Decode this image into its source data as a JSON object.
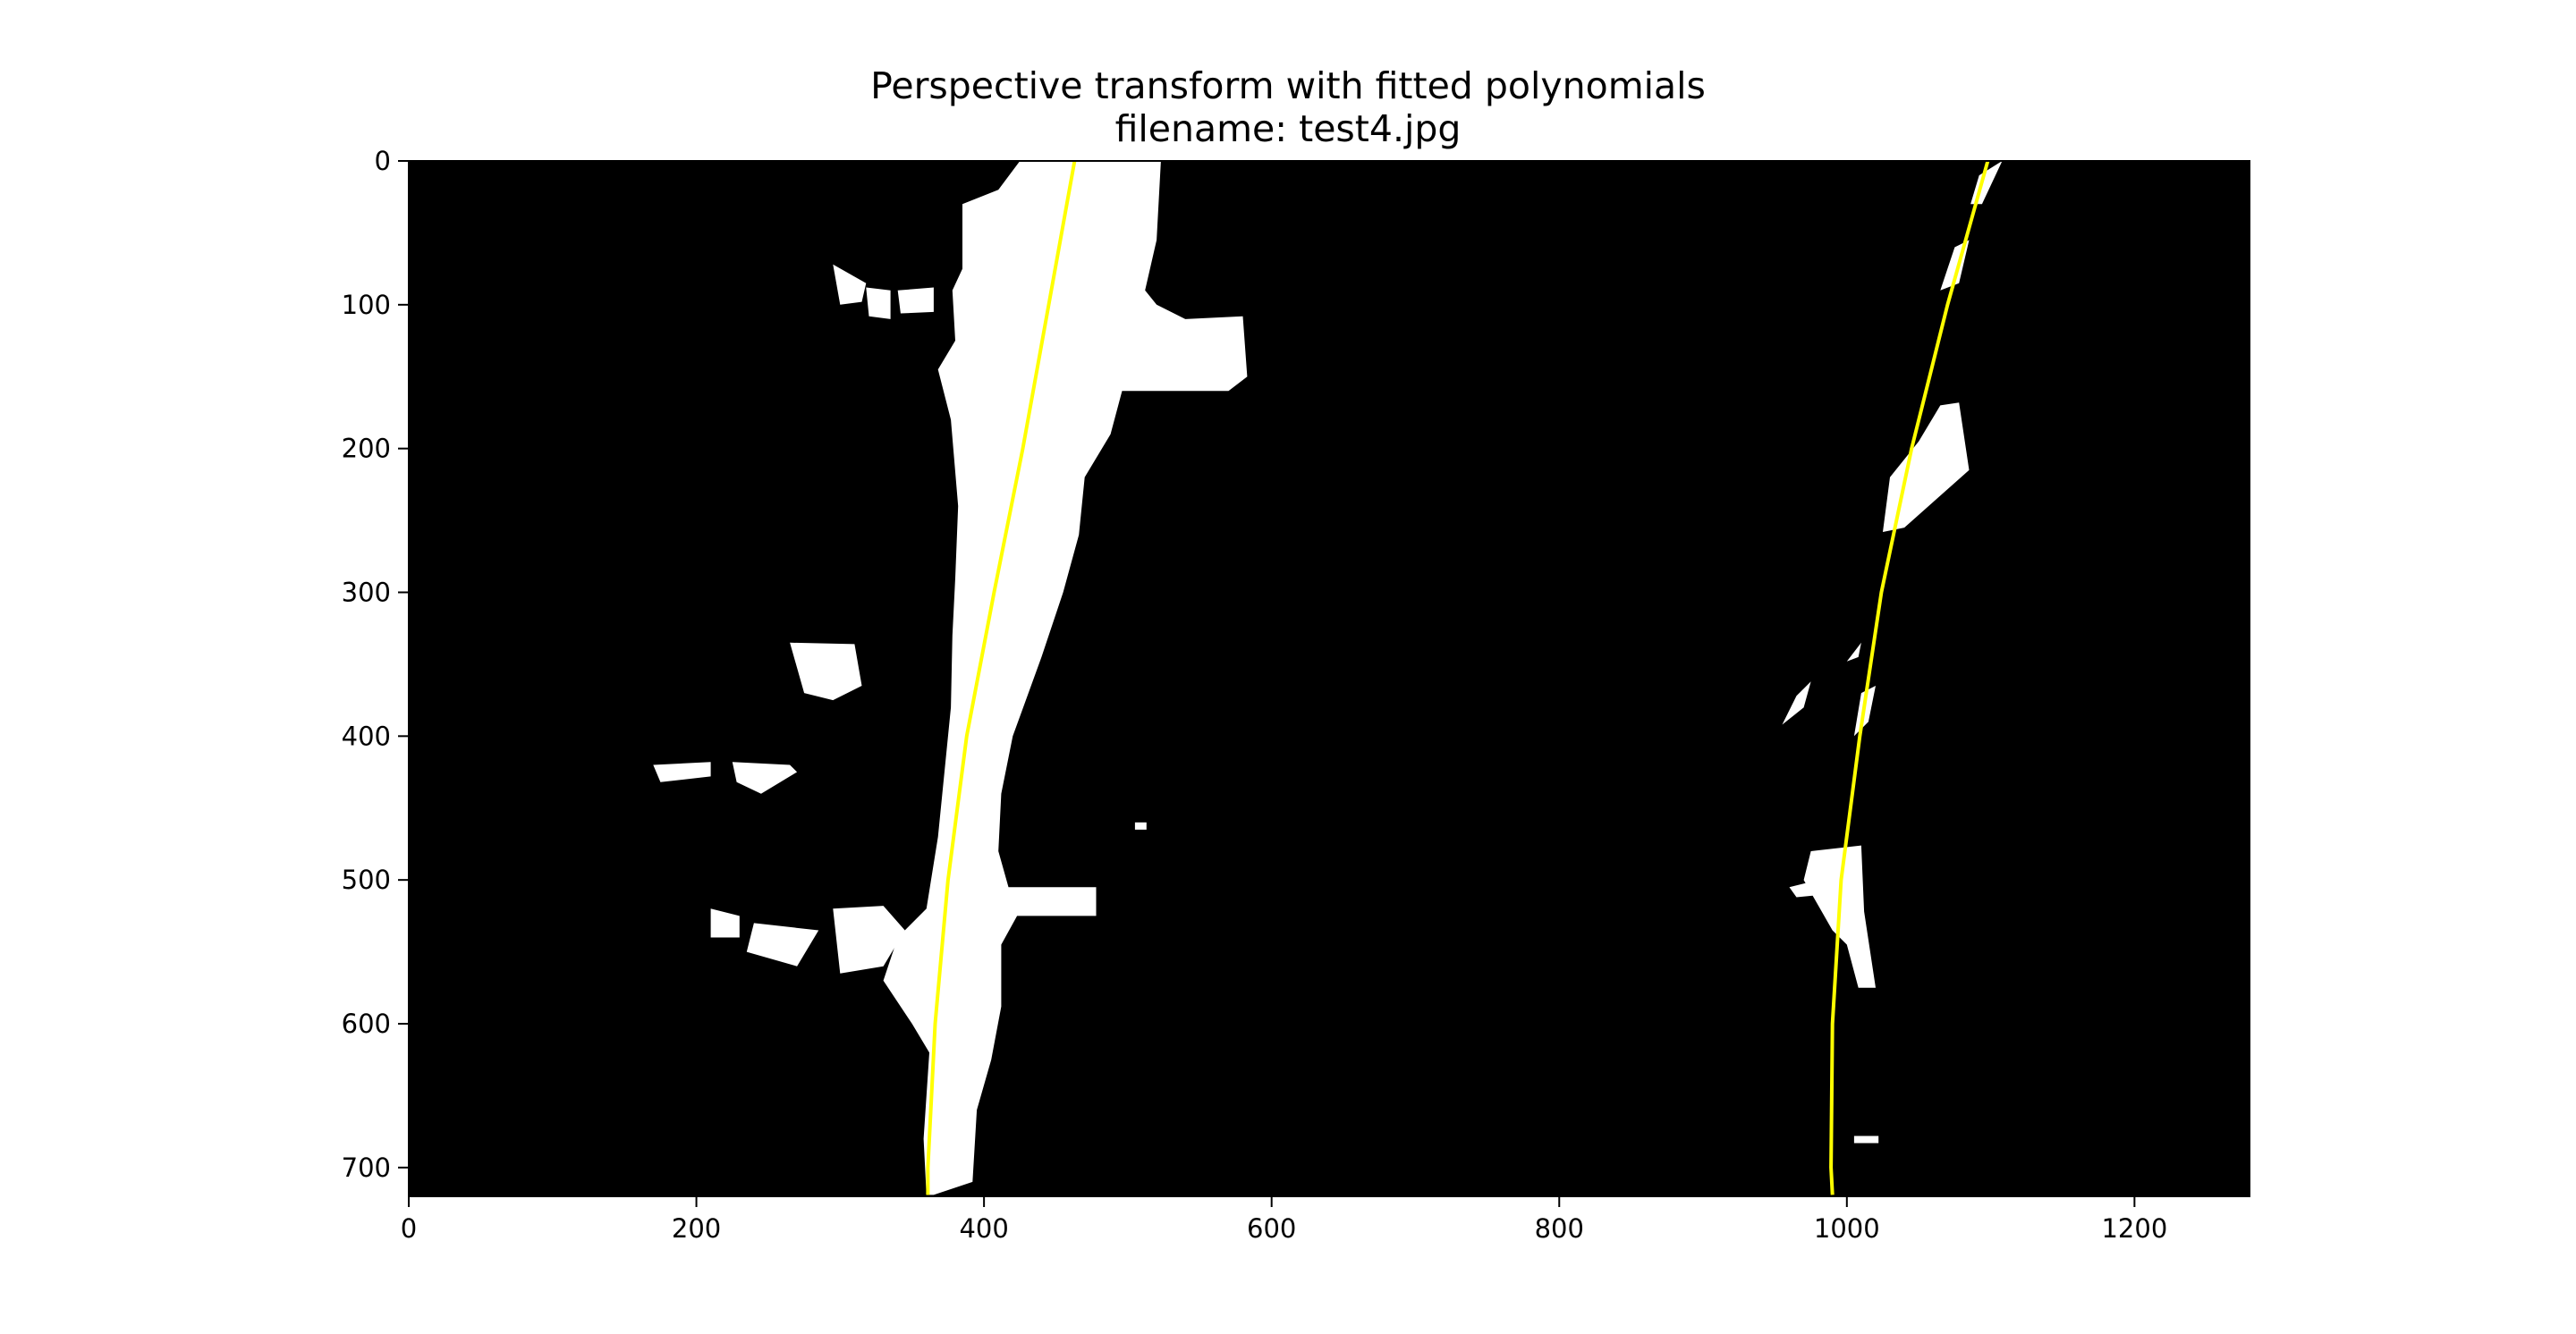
{
  "chart_data": {
    "type": "image",
    "title": "Perspective transform with fitted polynomials",
    "subtitle": "filename: test4.jpg",
    "xlabel": "",
    "ylabel": "",
    "xlim": [
      0,
      1280
    ],
    "ylim": [
      720,
      0
    ],
    "x_ticks": [
      0,
      200,
      400,
      600,
      800,
      1000,
      1200
    ],
    "y_ticks": [
      0,
      100,
      200,
      300,
      400,
      500,
      600,
      700
    ],
    "grid": false,
    "background_color": "#000000",
    "lane_pixel_color": "#ffffff",
    "fit_line_color": "#ffff00",
    "series": [
      {
        "y": [
          0,
          100,
          200,
          300,
          400,
          500,
          600,
          700,
          719
        ],
        "x": [
          463,
          445,
          427,
          407,
          388,
          375,
          366,
          361,
          361
        ]
      },
      {
        "y": [
          0,
          100,
          200,
          300,
          400,
          500,
          600,
          700,
          719
        ],
        "x": [
          1098,
          1070,
          1045,
          1024,
          1009,
          996,
          990,
          989,
          990
        ]
      }
    ],
    "lane_pixels": [
      [
        [
          425,
          0
        ],
        [
          523,
          0
        ],
        [
          520,
          55
        ],
        [
          512,
          90
        ],
        [
          520,
          100
        ],
        [
          540,
          110
        ],
        [
          580,
          108
        ],
        [
          583,
          150
        ],
        [
          570,
          160
        ],
        [
          496,
          160
        ],
        [
          488,
          190
        ],
        [
          470,
          220
        ],
        [
          466,
          260
        ],
        [
          455,
          300
        ],
        [
          440,
          345
        ],
        [
          420,
          400
        ],
        [
          412,
          440
        ],
        [
          410,
          480
        ],
        [
          417,
          505
        ],
        [
          478,
          505
        ],
        [
          478,
          525
        ],
        [
          423,
          525
        ],
        [
          412,
          545
        ],
        [
          412,
          588
        ],
        [
          405,
          625
        ],
        [
          395,
          660
        ],
        [
          392,
          710
        ],
        [
          365,
          719
        ],
        [
          360,
          719
        ],
        [
          358,
          680
        ],
        [
          362,
          620
        ],
        [
          350,
          600
        ],
        [
          330,
          570
        ],
        [
          340,
          540
        ],
        [
          360,
          520
        ],
        [
          368,
          470
        ],
        [
          372,
          430
        ],
        [
          377,
          380
        ],
        [
          378,
          330
        ],
        [
          380,
          290
        ],
        [
          382,
          240
        ],
        [
          377,
          180
        ],
        [
          368,
          145
        ],
        [
          380,
          125
        ],
        [
          378,
          90
        ],
        [
          385,
          75
        ],
        [
          385,
          30
        ],
        [
          410,
          20
        ]
      ],
      [
        [
          295,
          72
        ],
        [
          318,
          85
        ],
        [
          315,
          98
        ],
        [
          300,
          100
        ]
      ],
      [
        [
          318,
          88
        ],
        [
          335,
          90
        ],
        [
          335,
          110
        ],
        [
          320,
          108
        ]
      ],
      [
        [
          340,
          90
        ],
        [
          365,
          88
        ],
        [
          365,
          105
        ],
        [
          342,
          106
        ]
      ],
      [
        [
          265,
          335
        ],
        [
          310,
          336
        ],
        [
          315,
          365
        ],
        [
          295,
          375
        ],
        [
          275,
          370
        ]
      ],
      [
        [
          170,
          420
        ],
        [
          210,
          418
        ],
        [
          210,
          428
        ],
        [
          175,
          432
        ]
      ],
      [
        [
          225,
          418
        ],
        [
          265,
          420
        ],
        [
          270,
          425
        ],
        [
          245,
          440
        ],
        [
          228,
          432
        ]
      ],
      [
        [
          240,
          530
        ],
        [
          285,
          535
        ],
        [
          270,
          560
        ],
        [
          235,
          550
        ]
      ],
      [
        [
          295,
          520
        ],
        [
          330,
          518
        ],
        [
          345,
          535
        ],
        [
          330,
          560
        ],
        [
          300,
          565
        ]
      ],
      [
        [
          210,
          520
        ],
        [
          230,
          525
        ],
        [
          230,
          540
        ],
        [
          210,
          540
        ]
      ],
      [
        [
          505,
          460
        ],
        [
          513,
          460
        ],
        [
          513,
          465
        ],
        [
          505,
          465
        ]
      ],
      [
        [
          1092,
          10
        ],
        [
          1108,
          0
        ],
        [
          1094,
          30
        ],
        [
          1086,
          30
        ]
      ],
      [
        [
          1075,
          60
        ],
        [
          1085,
          55
        ],
        [
          1078,
          85
        ],
        [
          1065,
          90
        ]
      ],
      [
        [
          1065,
          170
        ],
        [
          1078,
          168
        ],
        [
          1085,
          215
        ],
        [
          1040,
          255
        ],
        [
          1025,
          258
        ],
        [
          1030,
          220
        ],
        [
          1050,
          195
        ]
      ],
      [
        [
          1010,
          335
        ],
        [
          1008,
          345
        ],
        [
          1000,
          348
        ]
      ],
      [
        [
          965,
          372
        ],
        [
          975,
          362
        ],
        [
          970,
          380
        ],
        [
          955,
          392
        ]
      ],
      [
        [
          1010,
          370
        ],
        [
          1020,
          365
        ],
        [
          1015,
          390
        ],
        [
          1005,
          400
        ]
      ],
      [
        [
          975,
          480
        ],
        [
          1010,
          476
        ],
        [
          1012,
          522
        ],
        [
          1020,
          575
        ],
        [
          1008,
          575
        ],
        [
          1000,
          545
        ],
        [
          990,
          535
        ],
        [
          970,
          500
        ]
      ],
      [
        [
          960,
          505
        ],
        [
          980,
          500
        ],
        [
          985,
          510
        ],
        [
          965,
          512
        ]
      ],
      [
        [
          1005,
          678
        ],
        [
          1022,
          678
        ],
        [
          1022,
          683
        ],
        [
          1005,
          683
        ]
      ]
    ]
  }
}
